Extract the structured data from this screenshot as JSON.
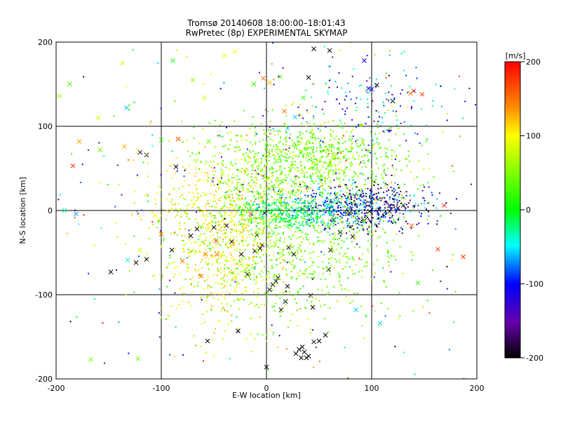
{
  "chart_data": {
    "type": "scatter",
    "title": "Tromsø 20140608 18:00:00–18:01:43",
    "subtitle": "RwPretec (8p) EXPERIMENTAL SKYMAP",
    "xlabel": "E-W location [km]",
    "ylabel": "N-S location [km]",
    "xlim": [
      -200,
      200
    ],
    "ylim": [
      -200,
      200
    ],
    "xticks": [
      "-200",
      "-100",
      "0",
      "100",
      "200"
    ],
    "yticks": [
      "-200",
      "-100",
      "0",
      "100",
      "200"
    ],
    "grid": true,
    "colorbar": {
      "label": "[m/s]",
      "range": [
        -200,
        200
      ],
      "ticks": [
        "200",
        "100",
        "0",
        "-100",
        "-200"
      ]
    },
    "series": [
      {
        "marker": "x",
        "points": [
          [
            -197,
            136,
            60
          ],
          [
            -187,
            150,
            30
          ],
          [
            -178,
            82,
            130
          ],
          [
            -184,
            53,
            180
          ],
          [
            -181,
            -4,
            -70
          ],
          [
            -158,
            72,
            40
          ],
          [
            -160,
            110,
            90
          ],
          [
            -137,
            175,
            80
          ],
          [
            -133,
            122,
            -60
          ],
          [
            -135,
            76,
            130
          ],
          [
            -120,
            69,
            -190
          ],
          [
            -120,
            -47,
            90
          ],
          [
            -132,
            -59,
            -40
          ],
          [
            -148,
            -73,
            -210
          ],
          [
            -124,
            -62,
            -210
          ],
          [
            -114,
            -58,
            -210
          ],
          [
            -114,
            66,
            -210
          ],
          [
            -100,
            84,
            20
          ],
          [
            -89,
            178,
            10
          ],
          [
            -90,
            -47,
            -210
          ],
          [
            -86,
            52,
            -210
          ],
          [
            -84,
            85,
            180
          ],
          [
            -72,
            -30,
            -210
          ],
          [
            -70,
            155,
            60
          ],
          [
            -66,
            -22,
            -210
          ],
          [
            -59,
            134,
            80
          ],
          [
            -58,
            -52,
            150
          ],
          [
            -56,
            -155,
            -210
          ],
          [
            -55,
            82,
            40
          ],
          [
            -50,
            -20,
            -210
          ],
          [
            -48,
            -36,
            180
          ],
          [
            -47,
            -52,
            170
          ],
          [
            -38,
            -18,
            -210
          ],
          [
            -36,
            17,
            120
          ],
          [
            -33,
            -37,
            -210
          ],
          [
            -29,
            26,
            -20
          ],
          [
            -27,
            -143,
            -210
          ],
          [
            -24,
            -52,
            -210
          ],
          [
            -18,
            -76,
            -210
          ],
          [
            -15,
            -4,
            180
          ],
          [
            -11,
            -48,
            -210
          ],
          [
            -9,
            -29,
            -210
          ],
          [
            -6,
            -45,
            -210
          ],
          [
            -4,
            -41,
            -210
          ],
          [
            -2,
            -3,
            -210
          ],
          [
            0,
            -186,
            -210
          ],
          [
            3,
            -94,
            -210
          ],
          [
            6,
            -88,
            -210
          ],
          [
            9,
            -84,
            -210
          ],
          [
            11,
            -80,
            -210
          ],
          [
            14,
            -118,
            -210
          ],
          [
            18,
            -108,
            -210
          ],
          [
            20,
            -90,
            -210
          ],
          [
            21,
            -44,
            -210
          ],
          [
            26,
            -52,
            -210
          ],
          [
            28,
            -170,
            -210
          ],
          [
            31,
            -165,
            -210
          ],
          [
            33,
            -175,
            -210
          ],
          [
            34,
            -162,
            -210
          ],
          [
            36,
            -168,
            -210
          ],
          [
            38,
            -175,
            -210
          ],
          [
            40,
            -173,
            -210
          ],
          [
            42,
            -101,
            -210
          ],
          [
            44,
            -115,
            -210
          ],
          [
            45,
            -156,
            -210
          ],
          [
            50,
            -155,
            -210
          ],
          [
            56,
            -148,
            -210
          ],
          [
            59,
            -70,
            -210
          ],
          [
            61,
            -47,
            -210
          ],
          [
            64,
            -11,
            -210
          ],
          [
            70,
            -26,
            -210
          ],
          [
            79,
            -3,
            -210
          ],
          [
            82,
            -31,
            -210
          ],
          [
            86,
            -11,
            -210
          ],
          [
            93,
            -12,
            -210
          ],
          [
            98,
            -1,
            -210
          ],
          [
            107,
            1,
            -210
          ],
          [
            117,
            -1,
            -210
          ],
          [
            120,
            130,
            -210
          ],
          [
            125,
            3,
            -210
          ],
          [
            130,
            6,
            -210
          ],
          [
            137,
            139,
            150
          ],
          [
            138,
            -18,
            150
          ],
          [
            140,
            142,
            170
          ],
          [
            144,
            -86,
            20
          ],
          [
            148,
            138,
            170
          ],
          [
            163,
            -46,
            180
          ],
          [
            169,
            6,
            180
          ],
          [
            187,
            -55,
            180
          ],
          [
            105,
            149,
            -210
          ],
          [
            93,
            178,
            -100
          ],
          [
            97,
            145,
            -100
          ],
          [
            100,
            144,
            -100
          ],
          [
            108,
            -134,
            -60
          ],
          [
            85,
            -118,
            -60
          ],
          [
            60,
            190,
            -210
          ],
          [
            45,
            192,
            -210
          ],
          [
            40,
            158,
            -210
          ],
          [
            35,
            134,
            20
          ],
          [
            27,
            111,
            -60
          ],
          [
            20,
            98,
            -60
          ],
          [
            17,
            118,
            150
          ],
          [
            13,
            159,
            30
          ],
          [
            3,
            152,
            120
          ],
          [
            -3,
            157,
            150
          ],
          [
            -12,
            150,
            20
          ],
          [
            -30,
            189,
            100
          ],
          [
            -40,
            184,
            90
          ],
          [
            -62,
            -78,
            150
          ],
          [
            -80,
            -60,
            150
          ],
          [
            -100,
            -28,
            150
          ],
          [
            -106,
            -6,
            100
          ],
          [
            -167,
            -177,
            40
          ],
          [
            -192,
            0,
            -30
          ],
          [
            -122,
            -176,
            40
          ]
        ]
      },
      {
        "marker": "dot",
        "seed": 20140608,
        "clusters": [
          {
            "cx": 40,
            "cy": 60,
            "sx": 45,
            "sy": 25,
            "n": 900,
            "vmin": 10,
            "vmax": 80
          },
          {
            "cx": 75,
            "cy": 5,
            "sx": 35,
            "sy": 12,
            "n": 450,
            "vmin": -120,
            "vmax": -40
          },
          {
            "cx": 105,
            "cy": 5,
            "sx": 25,
            "sy": 15,
            "n": 200,
            "vmin": -200,
            "vmax": -150
          },
          {
            "cx": 20,
            "cy": -40,
            "sx": 55,
            "sy": 45,
            "n": 850,
            "vmin": 10,
            "vmax": 80
          },
          {
            "cx": -40,
            "cy": 10,
            "sx": 40,
            "sy": 30,
            "n": 400,
            "vmin": 60,
            "vmax": 130
          },
          {
            "cx": 20,
            "cy": -3,
            "sx": 25,
            "sy": 10,
            "n": 300,
            "vmin": -40,
            "vmax": 10
          },
          {
            "cx": -40,
            "cy": -60,
            "sx": 25,
            "sy": 40,
            "n": 350,
            "vmin": 70,
            "vmax": 130
          },
          {
            "cx": 90,
            "cy": 130,
            "sx": 40,
            "sy": 30,
            "n": 150,
            "vmin": -160,
            "vmax": -20
          },
          {
            "cx": 0,
            "cy": 0,
            "sx": 140,
            "sy": 110,
            "n": 350,
            "vmin": -200,
            "vmax": 200
          }
        ]
      }
    ]
  }
}
